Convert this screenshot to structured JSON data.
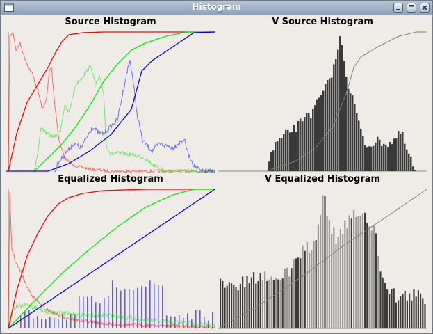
{
  "window": {
    "title": "Histogram",
    "app_icon": "chart-icon",
    "controls": [
      "minimize-icon",
      "maximize-icon",
      "close-icon"
    ]
  },
  "panels": [
    {
      "id": "source",
      "title": "Source Histogram"
    },
    {
      "id": "v-source",
      "title": "V Source Histogram"
    },
    {
      "id": "equalized",
      "title": "Equalized Histogram"
    },
    {
      "id": "v-equalized",
      "title": "V Equalized Histogram"
    }
  ],
  "colors": {
    "red": "#ff0000",
    "green": "#00ee00",
    "blue": "#0000ff",
    "gray": "#808080",
    "bar": "#3a3a3a",
    "window_bg": "#efebe7"
  }
}
